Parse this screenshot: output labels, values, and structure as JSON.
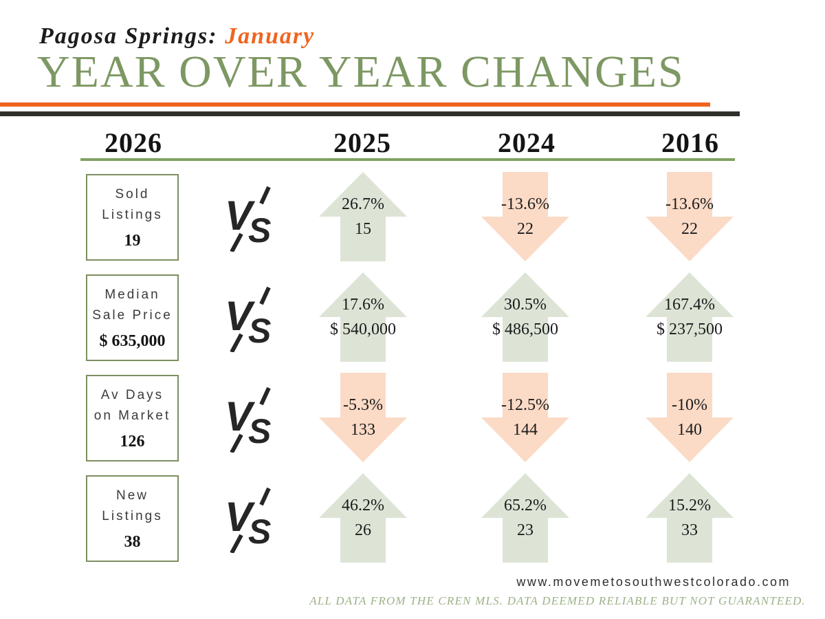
{
  "header": {
    "location_label": "Pagosa Springs:",
    "month_label": "January",
    "title": "YEAR OVER YEAR CHANGES"
  },
  "vs_label": "VS",
  "chart_data": {
    "type": "table",
    "title": "Year over Year Changes",
    "subtitle": "Pagosa Springs: January",
    "columns": [
      "2026",
      "2025",
      "2024",
      "2016"
    ],
    "rows": [
      {
        "metric": "Sold Listings",
        "metric_lines": [
          "Sold",
          "Listings"
        ],
        "current_2026": "19",
        "comparisons": [
          {
            "year": "2025",
            "direction": "up",
            "percent_change": "26.7%",
            "value": "15"
          },
          {
            "year": "2024",
            "direction": "down",
            "percent_change": "-13.6%",
            "value": "22"
          },
          {
            "year": "2016",
            "direction": "down",
            "percent_change": "-13.6%",
            "value": "22"
          }
        ]
      },
      {
        "metric": "Median Sale Price",
        "metric_lines": [
          "Median",
          "Sale Price"
        ],
        "current_2026": "$ 635,000",
        "comparisons": [
          {
            "year": "2025",
            "direction": "up",
            "percent_change": "17.6%",
            "value": "$ 540,000"
          },
          {
            "year": "2024",
            "direction": "up",
            "percent_change": "30.5%",
            "value": "$ 486,500"
          },
          {
            "year": "2016",
            "direction": "up",
            "percent_change": "167.4%",
            "value": "$ 237,500"
          }
        ]
      },
      {
        "metric": "Av Days on Market",
        "metric_lines": [
          "Av Days",
          "on Market"
        ],
        "current_2026": "126",
        "comparisons": [
          {
            "year": "2025",
            "direction": "down",
            "percent_change": "-5.3%",
            "value": "133"
          },
          {
            "year": "2024",
            "direction": "down",
            "percent_change": "-12.5%",
            "value": "144"
          },
          {
            "year": "2016",
            "direction": "down",
            "percent_change": "-10%",
            "value": "140"
          }
        ]
      },
      {
        "metric": "New Listings",
        "metric_lines": [
          "New",
          "Listings"
        ],
        "current_2026": "38",
        "comparisons": [
          {
            "year": "2025",
            "direction": "up",
            "percent_change": "46.2%",
            "value": "26"
          },
          {
            "year": "2024",
            "direction": "up",
            "percent_change": "65.2%",
            "value": "23"
          },
          {
            "year": "2016",
            "direction": "up",
            "percent_change": "15.2%",
            "value": "33"
          }
        ]
      }
    ]
  },
  "footer": {
    "website": "www.movemetosouthwestcolorado.com",
    "disclaimer": "ALL DATA FROM THE CREN MLS. DATA DEEMED RELIABLE BUT NOT GUARANTEED."
  },
  "colors": {
    "accent_orange": "#F0641E",
    "title_green": "#7D9863",
    "rule_dark": "#30302A",
    "border_green": "#7D8E60",
    "divider_green": "#82A164",
    "arrow_up_fill": "#DDE4D6",
    "arrow_down_fill": "#FBDAC6",
    "disclaimer_green": "#9DB189",
    "text_dark": "#1B1B1B"
  }
}
